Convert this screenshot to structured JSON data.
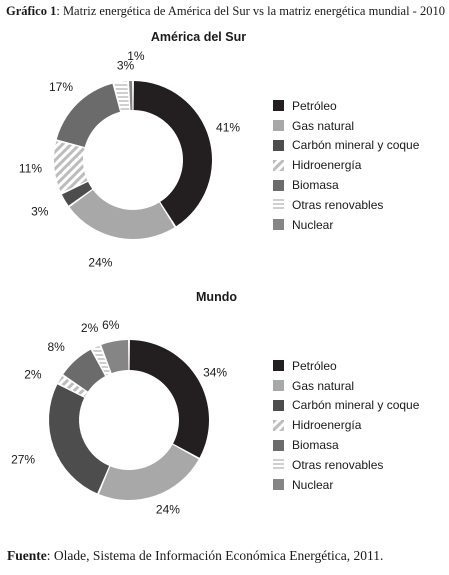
{
  "figure": {
    "title_prefix": "Gráfico 1",
    "title_text": ": Matriz energética de América del Sur vs la matriz energética mundial - 2010",
    "source_prefix": "Fuente",
    "source_text": ": Olade, Sistema de Información Económica Energética, 2011."
  },
  "colors": {
    "Petróleo": "#231f20",
    "Gas natural": "#a8a8a8",
    "Carbón mineral y coque": "#4d4d4d",
    "Hidroenergía": "#bdbdbd",
    "Biomasa": "#6b6b6b",
    "Otras renovables": "#cfcfcf",
    "Nuclear": "#858585"
  },
  "legend_items": [
    "Petróleo",
    "Gas natural",
    "Carbón mineral y coque",
    "Hidroenergía",
    "Biomasa",
    "Otras renovables",
    "Nuclear"
  ],
  "chart_data": [
    {
      "type": "pie",
      "title": "América del Sur",
      "categories": [
        "Petróleo",
        "Gas natural",
        "Carbón mineral y coque",
        "Hidroenergía",
        "Biomasa",
        "Otras renovables",
        "Nuclear"
      ],
      "values": [
        41,
        24,
        3,
        11,
        17,
        3,
        1
      ],
      "labels": [
        "41%",
        "24%",
        "3%",
        "11%",
        "17%",
        "3%",
        "1%"
      ],
      "legend": "right"
    },
    {
      "type": "pie",
      "title": "Mundo",
      "categories": [
        "Petróleo",
        "Gas natural",
        "Carbón mineral y coque",
        "Hidroenergía",
        "Biomasa",
        "Otras renovables",
        "Nuclear"
      ],
      "values": [
        34,
        24,
        27,
        2,
        8,
        2,
        6
      ],
      "labels": [
        "34%",
        "24%",
        "27%",
        "2%",
        "8%",
        "2%",
        "6%"
      ],
      "legend": "right"
    }
  ]
}
